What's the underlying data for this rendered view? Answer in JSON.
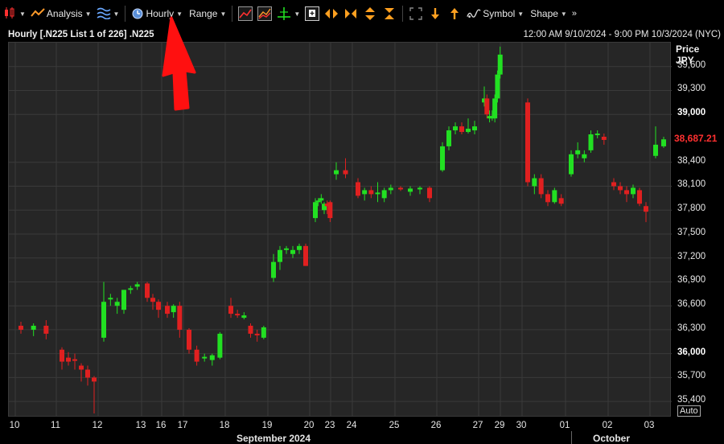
{
  "toolbar": {
    "analysis_label": "Analysis",
    "interval_label": "Hourly",
    "range_label": "Range",
    "symbol_label": "Symbol",
    "shape_label": "Shape"
  },
  "title": {
    "left": "Hourly [.N225 List 1 of 226] .N225",
    "right": "12:00 AM 9/10/2024 - 9:00 PM 10/3/2024 (NYC)"
  },
  "price_axis": {
    "header_line1": "Price",
    "header_line2": "JPY",
    "last_price": "38,687.21",
    "auto_label": "Auto",
    "labels": [
      {
        "text": "39,600",
        "value": 39600,
        "major": false
      },
      {
        "text": "39,300",
        "value": 39300,
        "major": false
      },
      {
        "text": "39,000",
        "value": 39000,
        "major": true
      },
      {
        "text": "38,400",
        "value": 38400,
        "major": false
      },
      {
        "text": "38,100",
        "value": 38100,
        "major": false
      },
      {
        "text": "37,800",
        "value": 37800,
        "major": false
      },
      {
        "text": "37,500",
        "value": 37500,
        "major": false
      },
      {
        "text": "37,200",
        "value": 37200,
        "major": false
      },
      {
        "text": "36,900",
        "value": 36900,
        "major": false
      },
      {
        "text": "36,600",
        "value": 36600,
        "major": false
      },
      {
        "text": "36,300",
        "value": 36300,
        "major": false
      },
      {
        "text": "36,000",
        "value": 36000,
        "major": true
      },
      {
        "text": "35,700",
        "value": 35700,
        "major": false
      },
      {
        "text": "35,400",
        "value": 35400,
        "major": false
      }
    ]
  },
  "time_axis": {
    "days": [
      "10",
      "11",
      "12",
      "13",
      "16",
      "17",
      "18",
      "19",
      "20",
      "23",
      "24",
      "25",
      "26",
      "27",
      "29",
      "30",
      "01",
      "02",
      "03"
    ],
    "months": [
      "September 2024",
      "October 2024"
    ]
  },
  "colors": {
    "up": "#22e022",
    "down": "#e02020",
    "background": "#262626",
    "grid": "#3a3a3a",
    "last_price": "#ff3030",
    "annotation_arrow": "#ff1010"
  },
  "chart_data": {
    "type": "candlestick",
    "symbol": ".N225",
    "interval": "Hourly",
    "ylim": [
      35200,
      39900
    ],
    "candles": [
      {
        "day": "10",
        "o": 36350,
        "h": 36400,
        "l": 36250,
        "c": 36300
      },
      {
        "day": "10",
        "o": 36300,
        "h": 36380,
        "l": 36220,
        "c": 36350
      },
      {
        "day": "10",
        "o": 36350,
        "h": 36420,
        "l": 36180,
        "c": 36250
      },
      {
        "day": "11",
        "o": 36050,
        "h": 36080,
        "l": 35800,
        "c": 35900
      },
      {
        "day": "11",
        "o": 35950,
        "h": 36020,
        "l": 35850,
        "c": 35900
      },
      {
        "day": "11",
        "o": 35930,
        "h": 36000,
        "l": 35800,
        "c": 35920
      },
      {
        "day": "11",
        "o": 35850,
        "h": 35880,
        "l": 35650,
        "c": 35800
      },
      {
        "day": "11",
        "o": 35800,
        "h": 35850,
        "l": 35600,
        "c": 35700
      },
      {
        "day": "11",
        "o": 35700,
        "h": 35720,
        "l": 35250,
        "c": 35650
      },
      {
        "day": "12",
        "o": 36200,
        "h": 36900,
        "l": 36150,
        "c": 36650
      },
      {
        "day": "12",
        "o": 36700,
        "h": 36750,
        "l": 36600,
        "c": 36700
      },
      {
        "day": "12",
        "o": 36600,
        "h": 36700,
        "l": 36500,
        "c": 36650
      },
      {
        "day": "12",
        "o": 36550,
        "h": 36800,
        "l": 36500,
        "c": 36800
      },
      {
        "day": "12",
        "o": 36800,
        "h": 36850,
        "l": 36750,
        "c": 36820
      },
      {
        "day": "12",
        "o": 36840,
        "h": 36900,
        "l": 36800,
        "c": 36870
      },
      {
        "day": "13",
        "o": 36880,
        "h": 36900,
        "l": 36650,
        "c": 36700
      },
      {
        "day": "13",
        "o": 36700,
        "h": 36750,
        "l": 36550,
        "c": 36650
      },
      {
        "day": "13",
        "o": 36650,
        "h": 36680,
        "l": 36450,
        "c": 36550
      },
      {
        "day": "16",
        "o": 36600,
        "h": 36650,
        "l": 36450,
        "c": 36500
      },
      {
        "day": "16",
        "o": 36520,
        "h": 36620,
        "l": 36450,
        "c": 36600
      },
      {
        "day": "16",
        "o": 36600,
        "h": 36650,
        "l": 36200,
        "c": 36300
      },
      {
        "day": "17",
        "o": 36300,
        "h": 36320,
        "l": 36000,
        "c": 36050
      },
      {
        "day": "17",
        "o": 36050,
        "h": 36100,
        "l": 35850,
        "c": 35900
      },
      {
        "day": "17",
        "o": 35950,
        "h": 36000,
        "l": 35900,
        "c": 35960
      },
      {
        "day": "17",
        "o": 35920,
        "h": 36000,
        "l": 35850,
        "c": 35980
      },
      {
        "day": "17",
        "o": 35950,
        "h": 36270,
        "l": 35930,
        "c": 36250
      },
      {
        "day": "18",
        "o": 36600,
        "h": 36700,
        "l": 36450,
        "c": 36500
      },
      {
        "day": "18",
        "o": 36500,
        "h": 36550,
        "l": 36450,
        "c": 36480
      },
      {
        "day": "18",
        "o": 36450,
        "h": 36520,
        "l": 36430,
        "c": 36480
      },
      {
        "day": "18",
        "o": 36350,
        "h": 36380,
        "l": 36200,
        "c": 36250
      },
      {
        "day": "18",
        "o": 36250,
        "h": 36300,
        "l": 36150,
        "c": 36230
      },
      {
        "day": "18",
        "o": 36200,
        "h": 36350,
        "l": 36180,
        "c": 36330
      },
      {
        "day": "19",
        "o": 36950,
        "h": 37250,
        "l": 36900,
        "c": 37150
      },
      {
        "day": "19",
        "o": 37150,
        "h": 37350,
        "l": 37050,
        "c": 37300
      },
      {
        "day": "19",
        "o": 37300,
        "h": 37350,
        "l": 37250,
        "c": 37320
      },
      {
        "day": "19",
        "o": 37250,
        "h": 37350,
        "l": 37200,
        "c": 37300
      },
      {
        "day": "19",
        "o": 37300,
        "h": 37380,
        "l": 37250,
        "c": 37350
      },
      {
        "day": "19",
        "o": 37350,
        "h": 37380,
        "l": 37100,
        "c": 37100
      },
      {
        "day": "20",
        "o": 37700,
        "h": 37950,
        "l": 37650,
        "c": 37900
      },
      {
        "day": "20",
        "o": 37900,
        "h": 37950,
        "l": 37850,
        "c": 37920
      },
      {
        "day": "20",
        "o": 37920,
        "h": 38000,
        "l": 37880,
        "c": 37950
      },
      {
        "day": "20",
        "o": 37800,
        "h": 37900,
        "l": 37750,
        "c": 37880
      },
      {
        "day": "20",
        "o": 37880,
        "h": 37920,
        "l": 37750,
        "c": 37850
      },
      {
        "day": "20",
        "o": 37900,
        "h": 37920,
        "l": 37650,
        "c": 37700
      },
      {
        "day": "23",
        "o": 38250,
        "h": 38400,
        "l": 38180,
        "c": 38300
      },
      {
        "day": "23",
        "o": 38300,
        "h": 38450,
        "l": 38200,
        "c": 38250
      },
      {
        "day": "24",
        "o": 38150,
        "h": 38200,
        "l": 37950,
        "c": 37980
      },
      {
        "day": "24",
        "o": 38000,
        "h": 38080,
        "l": 37920,
        "c": 38050
      },
      {
        "day": "24",
        "o": 38050,
        "h": 38100,
        "l": 37950,
        "c": 38000
      },
      {
        "day": "24",
        "o": 38000,
        "h": 38150,
        "l": 37900,
        "c": 38020
      },
      {
        "day": "24",
        "o": 37950,
        "h": 38080,
        "l": 37900,
        "c": 38050
      },
      {
        "day": "24",
        "o": 38050,
        "h": 38120,
        "l": 38000,
        "c": 38080
      },
      {
        "day": "25",
        "o": 38080,
        "h": 38100,
        "l": 38040,
        "c": 38060
      },
      {
        "day": "25",
        "o": 38030,
        "h": 38100,
        "l": 37980,
        "c": 38070
      },
      {
        "day": "25",
        "o": 38070,
        "h": 38100,
        "l": 38000,
        "c": 38080
      },
      {
        "day": "25",
        "o": 38080,
        "h": 38100,
        "l": 37900,
        "c": 37950
      },
      {
        "day": "26",
        "o": 38300,
        "h": 38650,
        "l": 38280,
        "c": 38600
      },
      {
        "day": "26",
        "o": 38600,
        "h": 38850,
        "l": 38550,
        "c": 38800
      },
      {
        "day": "26",
        "o": 38800,
        "h": 38900,
        "l": 38750,
        "c": 38850
      },
      {
        "day": "26",
        "o": 38850,
        "h": 38900,
        "l": 38750,
        "c": 38780
      },
      {
        "day": "26",
        "o": 38780,
        "h": 38950,
        "l": 38760,
        "c": 38820
      },
      {
        "day": "26",
        "o": 38800,
        "h": 38920,
        "l": 38750,
        "c": 38850
      },
      {
        "day": "27",
        "o": 39150,
        "h": 39350,
        "l": 39100,
        "c": 39200
      },
      {
        "day": "27",
        "o": 39200,
        "h": 39250,
        "l": 38950,
        "c": 39000
      },
      {
        "day": "27",
        "o": 38950,
        "h": 39050,
        "l": 38900,
        "c": 38980
      },
      {
        "day": "27",
        "o": 38950,
        "h": 39050,
        "l": 38920,
        "c": 38980
      },
      {
        "day": "27",
        "o": 38950,
        "h": 39250,
        "l": 38900,
        "c": 39200
      },
      {
        "day": "27",
        "o": 39200,
        "h": 39550,
        "l": 39150,
        "c": 39500
      },
      {
        "day": "27",
        "o": 39500,
        "h": 39850,
        "l": 39450,
        "c": 39750
      },
      {
        "day": "30",
        "o": 39150,
        "h": 39200,
        "l": 38100,
        "c": 38150
      },
      {
        "day": "30",
        "o": 38100,
        "h": 38250,
        "l": 38000,
        "c": 38200
      },
      {
        "day": "30",
        "o": 38200,
        "h": 38250,
        "l": 37950,
        "c": 38000
      },
      {
        "day": "30",
        "o": 38000,
        "h": 38050,
        "l": 37850,
        "c": 37900
      },
      {
        "day": "30",
        "o": 37900,
        "h": 38080,
        "l": 37880,
        "c": 38050
      },
      {
        "day": "30",
        "o": 37950,
        "h": 38000,
        "l": 37850,
        "c": 37880
      },
      {
        "day": "01",
        "o": 38250,
        "h": 38550,
        "l": 38220,
        "c": 38500
      },
      {
        "day": "01",
        "o": 38500,
        "h": 38650,
        "l": 38450,
        "c": 38550
      },
      {
        "day": "01",
        "o": 38450,
        "h": 38550,
        "l": 38400,
        "c": 38500
      },
      {
        "day": "01",
        "o": 38550,
        "h": 38800,
        "l": 38520,
        "c": 38750
      },
      {
        "day": "01",
        "o": 38750,
        "h": 38800,
        "l": 38700,
        "c": 38760
      },
      {
        "day": "01",
        "o": 38720,
        "h": 38760,
        "l": 38620,
        "c": 38680
      },
      {
        "day": "02",
        "o": 38150,
        "h": 38200,
        "l": 38050,
        "c": 38100
      },
      {
        "day": "02",
        "o": 38100,
        "h": 38150,
        "l": 38000,
        "c": 38050
      },
      {
        "day": "02",
        "o": 38050,
        "h": 38100,
        "l": 37900,
        "c": 38000
      },
      {
        "day": "02",
        "o": 38000,
        "h": 38120,
        "l": 37950,
        "c": 38080
      },
      {
        "day": "02",
        "o": 38050,
        "h": 38080,
        "l": 37850,
        "c": 37880
      },
      {
        "day": "02",
        "o": 37850,
        "h": 37900,
        "l": 37650,
        "c": 37780
      },
      {
        "day": "03",
        "o": 38480,
        "h": 38850,
        "l": 38450,
        "c": 38620
      },
      {
        "day": "03",
        "o": 38600,
        "h": 38720,
        "l": 38580,
        "c": 38687.21
      }
    ]
  }
}
